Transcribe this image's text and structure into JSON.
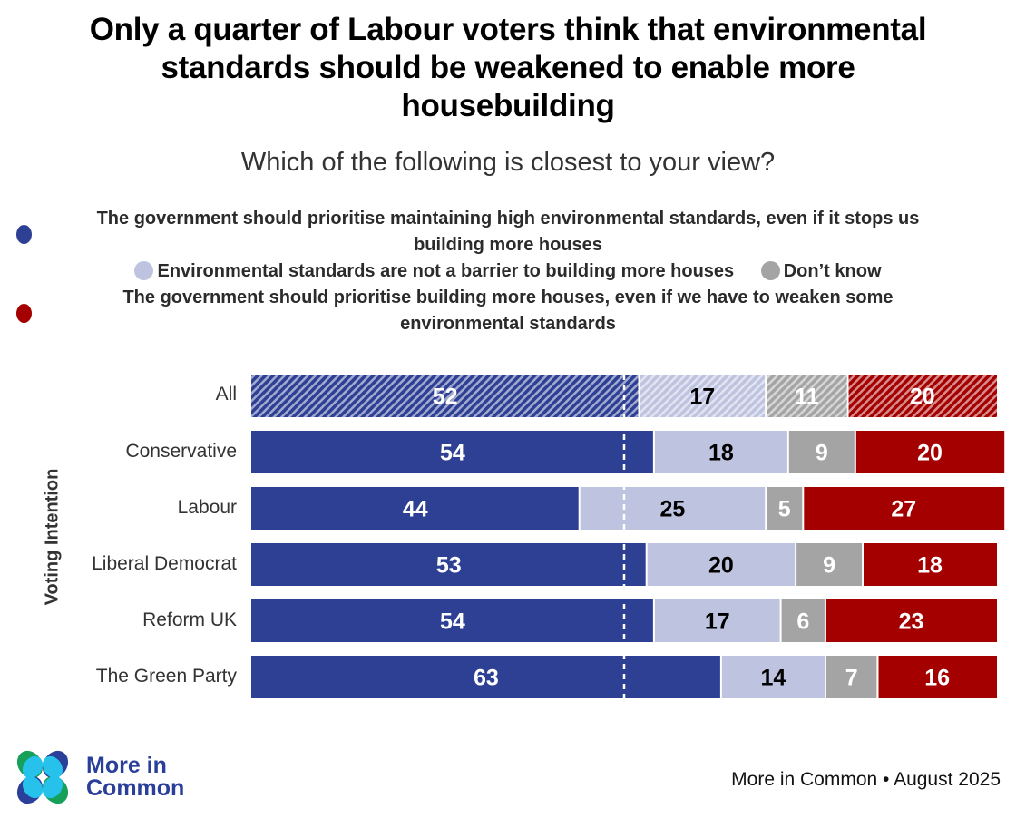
{
  "header": {
    "title_lines": [
      "Only a quarter of Labour voters think that environmental",
      "standards should be weakened to enable more",
      "housebuilding"
    ],
    "subtitle": "Which of the following is closest to your view?"
  },
  "legend": {
    "items": [
      {
        "label_lines": [
          "The government should prioritise maintaining high environmental standards, even if it stops us",
          "building more houses"
        ],
        "color": "#2e4094"
      },
      {
        "label_lines": [
          "Environmental standards are not a barrier to building more houses"
        ],
        "color": "#bec3e0"
      },
      {
        "label_lines": [
          "Don’t know"
        ],
        "color": "#a4a4a4"
      },
      {
        "label_lines": [
          "The government should prioritise building more houses, even if we have to weaken some",
          "environmental standards"
        ],
        "color": "#a50000"
      }
    ]
  },
  "chart_data": {
    "type": "bar",
    "orientation": "horizontal",
    "stacked": true,
    "title": "Only a quarter of Labour voters think that environmental standards should be weakened to enable more housebuilding",
    "subtitle": "Which of the following is closest to your view?",
    "ylabel": "Voting Intention",
    "xlabel": "",
    "xlim": [
      0,
      100
    ],
    "grid": false,
    "reference_line": {
      "x": 50,
      "style": "dashed",
      "color": "#ffffff"
    },
    "categories": [
      "All",
      "Conservative",
      "Labour",
      "Liberal Democrat",
      "Reform UK",
      "The Green Party"
    ],
    "hatched_categories": [
      "All"
    ],
    "series": [
      {
        "name": "The government should prioritise maintaining high environmental standards, even if it stops us building more houses",
        "color": "#2e4094",
        "label_color": "#ffffff",
        "values": [
          52,
          54,
          44,
          53,
          54,
          63
        ]
      },
      {
        "name": "Environmental standards are not a barrier to building more houses",
        "color": "#bec3e0",
        "label_color": "#000000",
        "values": [
          17,
          18,
          25,
          20,
          17,
          14
        ]
      },
      {
        "name": "Don’t know",
        "color": "#a4a4a4",
        "label_color": "#ffffff",
        "values": [
          11,
          9,
          5,
          9,
          6,
          7
        ]
      },
      {
        "name": "The government should prioritise building more houses, even if we have to weaken some environmental standards",
        "color": "#a50000",
        "label_color": "#ffffff",
        "values": [
          20,
          20,
          27,
          18,
          23,
          16
        ]
      }
    ],
    "legend_position": "top"
  },
  "footer": {
    "logo_lines": [
      "More in",
      "Common"
    ],
    "logo_colors": {
      "green": "#16a05a",
      "navy": "#2a3f9a",
      "cyan": "#27c2ec"
    },
    "source": "More in Common • August 2025"
  }
}
